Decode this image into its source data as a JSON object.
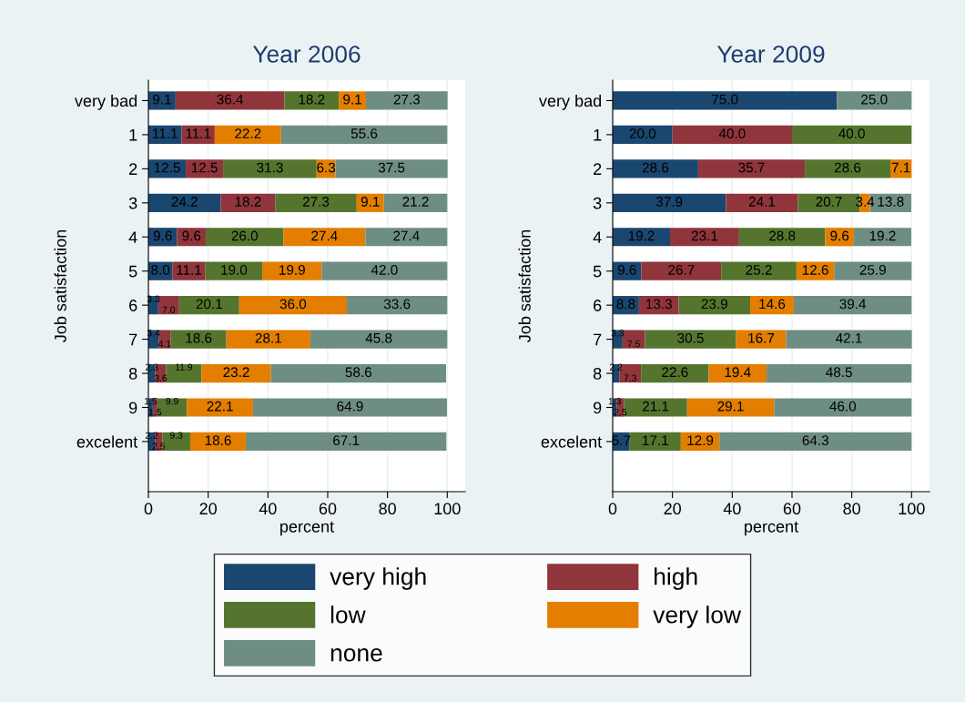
{
  "chart_data": [
    {
      "type": "bar",
      "orientation": "horizontal",
      "stacked": true,
      "title": "Year 2006",
      "xlabel": "percent",
      "ylabel": "Job satisfaction",
      "categories": [
        "very bad",
        "1",
        "2",
        "3",
        "4",
        "5",
        "6",
        "7",
        "8",
        "9",
        "excelent"
      ],
      "series": [
        {
          "name": "very high",
          "color": "#1a476f",
          "values": [
            9.1,
            11.1,
            12.5,
            24.2,
            9.6,
            8.0,
            3.3,
            3.4,
            2.3,
            1.5,
            2.2
          ],
          "value_labels": [
            "9.1",
            "11.1",
            "12.5",
            "24.2",
            "9.6",
            "8.0",
            "3.3",
            "3.4",
            "2.3",
            "1.5",
            "2.2"
          ]
        },
        {
          "name": "high",
          "color": "#90353b",
          "values": [
            36.4,
            11.1,
            12.5,
            18.2,
            9.6,
            11.1,
            7.0,
            4.1,
            3.6,
            1.5,
            2.5
          ],
          "value_labels": [
            "36.4",
            "11.1",
            "12.5",
            "18.2",
            "9.6",
            "11.1",
            "7.0",
            "4.1",
            "3.6",
            "1.5",
            "2.5"
          ]
        },
        {
          "name": "low",
          "color": "#55752f",
          "values": [
            18.2,
            null,
            31.3,
            27.3,
            26.0,
            19.0,
            20.1,
            18.6,
            11.9,
            9.9,
            9.3
          ],
          "value_labels": [
            "18.2",
            null,
            "31.3",
            "27.3",
            "26.0",
            "19.0",
            "20.1",
            "18.6",
            "11.9",
            "9.9",
            "9.3"
          ]
        },
        {
          "name": "very low",
          "color": "#e37e00",
          "values": [
            9.1,
            22.2,
            6.3,
            9.1,
            27.4,
            19.9,
            36.0,
            28.1,
            23.2,
            22.1,
            18.6
          ],
          "value_labels": [
            "9.1",
            "22.2",
            "6.3",
            "9.1",
            "27.4",
            "19.9",
            "36.0",
            "28.1",
            "23.2",
            "22.1",
            "18.6"
          ]
        },
        {
          "name": "none",
          "color": "#6e8e84",
          "values": [
            27.3,
            55.6,
            37.5,
            21.2,
            27.4,
            42.0,
            33.6,
            45.8,
            58.6,
            64.9,
            67.1
          ],
          "value_labels": [
            "27.3",
            "55.6",
            "37.5",
            "21.2",
            "27.4",
            "42.0",
            "33.6",
            "45.8",
            "58.6",
            "64.9",
            "67.1"
          ]
        }
      ],
      "xlim": [
        0,
        106
      ],
      "xticks": [
        0,
        20,
        40,
        60,
        80,
        100
      ],
      "grid": "x",
      "legend": "bottom"
    },
    {
      "type": "bar",
      "orientation": "horizontal",
      "stacked": true,
      "title": "Year 2009",
      "xlabel": "percent",
      "ylabel": "Job satisfaction",
      "categories": [
        "very bad",
        "1",
        "2",
        "3",
        "4",
        "5",
        "6",
        "7",
        "8",
        "9",
        "excelent"
      ],
      "series": [
        {
          "color": "#1a476f",
          "values": [
            75.0,
            20.0,
            28.6,
            37.9,
            19.2,
            9.6,
            8.8,
            3.3,
            2.2,
            1.3,
            5.7
          ],
          "value_labels": [
            "75.0",
            "20.0",
            "28.6",
            "37.9",
            "19.2",
            "9.6",
            "8.8",
            "3.3",
            "2.2",
            "1.3",
            "5.7"
          ]
        },
        {
          "color": "#90353b",
          "values": [
            null,
            40.0,
            35.7,
            24.1,
            23.1,
            26.7,
            13.3,
            7.5,
            7.3,
            2.5,
            null
          ],
          "value_labels": [
            null,
            "40.0",
            "35.7",
            "24.1",
            "23.1",
            "26.7",
            "13.3",
            "7.5",
            "7.3",
            "2.5",
            null
          ]
        },
        {
          "color": "#55752f",
          "values": [
            null,
            40.0,
            28.6,
            20.7,
            28.8,
            25.2,
            23.9,
            30.5,
            22.6,
            21.1,
            17.1
          ],
          "value_labels": [
            null,
            "40.0",
            "28.6",
            "20.7",
            "28.8",
            "25.2",
            "23.9",
            "30.5",
            "22.6",
            "21.1",
            "17.1"
          ]
        },
        {
          "color": "#e37e00",
          "values": [
            null,
            null,
            7.1,
            3.4,
            9.6,
            12.6,
            14.6,
            16.7,
            19.4,
            29.1,
            12.9
          ],
          "value_labels": [
            null,
            null,
            "7.1",
            "3.4",
            "9.6",
            "12.6",
            "14.6",
            "16.7",
            "19.4",
            "29.1",
            "12.9"
          ]
        },
        {
          "color": "#6e8e84",
          "values": [
            25.0,
            null,
            null,
            13.8,
            19.2,
            25.9,
            39.4,
            42.1,
            48.5,
            46.0,
            64.3
          ],
          "value_labels": [
            "25.0",
            null,
            null,
            "13.8",
            "19.2",
            "25.9",
            "39.4",
            "42.1",
            "48.5",
            "46.0",
            "64.3"
          ]
        }
      ],
      "xlim": [
        0,
        106
      ],
      "xticks": [
        0,
        20,
        40,
        60,
        80,
        100
      ],
      "grid": "x"
    }
  ]
}
